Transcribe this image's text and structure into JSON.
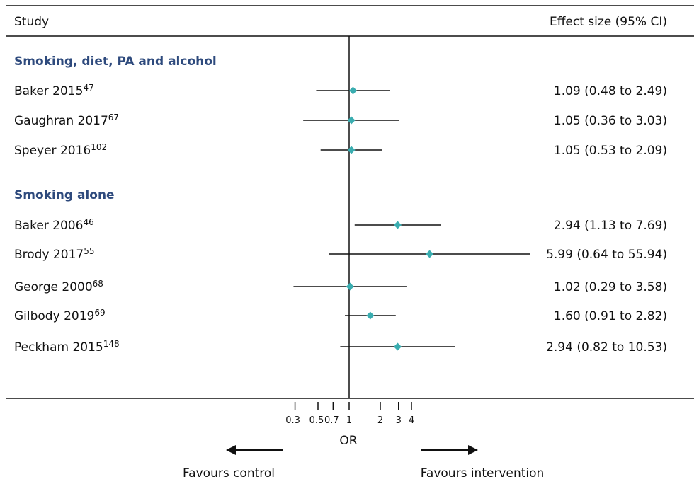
{
  "chart_data": {
    "type": "forest",
    "header": {
      "study": "Study",
      "effect": "Effect size (95% CI)"
    },
    "x_scale": "log",
    "xlim": [
      0.3,
      4
    ],
    "null_value": 1,
    "ticks": [
      {
        "value": 0.3,
        "label": "0.3"
      },
      {
        "value": 0.5,
        "label": "0.5"
      },
      {
        "value": 0.7,
        "label": "0.7"
      },
      {
        "value": 1,
        "label": "1"
      },
      {
        "value": 2,
        "label": "2"
      },
      {
        "value": 3,
        "label": "3"
      },
      {
        "value": 4,
        "label": "4"
      }
    ],
    "xlabel": "OR",
    "favours_left": "Favours control",
    "favours_right": "Favours intervention",
    "marker_color": "#3aadb0",
    "group_color": "#2e4a7d",
    "rows": [
      {
        "kind": "group",
        "label": "Smoking, diet, PA and alcohol"
      },
      {
        "kind": "study",
        "study": "Baker 2015",
        "ref": "47",
        "or": 1.09,
        "lower": 0.48,
        "upper": 2.49,
        "text": "1.09 (0.48 to 2.49)"
      },
      {
        "kind": "study",
        "study": "Gaughran 2017",
        "ref": "67",
        "or": 1.05,
        "lower": 0.36,
        "upper": 3.03,
        "text": "1.05 (0.36 to 3.03)"
      },
      {
        "kind": "study",
        "study": "Speyer 2016",
        "ref": "102",
        "or": 1.05,
        "lower": 0.53,
        "upper": 2.09,
        "text": "1.05 (0.53 to 2.09)"
      },
      {
        "kind": "group",
        "label": "Smoking alone"
      },
      {
        "kind": "study",
        "study": "Baker 2006",
        "ref": "46",
        "or": 2.94,
        "lower": 1.13,
        "upper": 7.69,
        "text": "2.94 (1.13 to 7.69)"
      },
      {
        "kind": "study",
        "study": "Brody 2017",
        "ref": "55",
        "or": 5.99,
        "lower": 0.64,
        "upper": 55.94,
        "text": "5.99 (0.64 to 55.94)"
      },
      {
        "kind": "study",
        "study": "George 2000",
        "ref": "68",
        "or": 1.02,
        "lower": 0.29,
        "upper": 3.58,
        "text": "1.02 (0.29 to 3.58)"
      },
      {
        "kind": "study",
        "study": "Gilbody 2019",
        "ref": "69",
        "or": 1.6,
        "lower": 0.91,
        "upper": 2.82,
        "text": "1.60 (0.91 to 2.82)"
      },
      {
        "kind": "study",
        "study": "Peckham 2015",
        "ref": "148",
        "or": 2.94,
        "lower": 0.82,
        "upper": 10.53,
        "text": "2.94 (0.82 to 10.53)"
      }
    ]
  }
}
